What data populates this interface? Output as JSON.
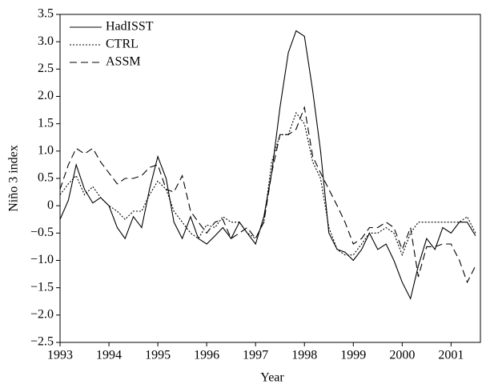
{
  "chart_data": {
    "type": "line",
    "x_label": "Year",
    "y_label": "Niño 3 index",
    "x": [
      1993,
      1993.17,
      1993.33,
      1993.5,
      1993.67,
      1993.83,
      1994,
      1994.17,
      1994.33,
      1994.5,
      1994.67,
      1994.83,
      1995,
      1995.17,
      1995.33,
      1995.5,
      1995.67,
      1995.83,
      1996,
      1996.17,
      1996.33,
      1996.5,
      1996.67,
      1996.83,
      1997,
      1997.17,
      1997.33,
      1997.5,
      1997.67,
      1997.83,
      1998,
      1998.17,
      1998.33,
      1998.5,
      1998.67,
      1998.83,
      1999,
      1999.17,
      1999.33,
      1999.5,
      1999.67,
      1999.83,
      2000,
      2000.17,
      2000.33,
      2000.5,
      2000.67,
      2000.83,
      2001,
      2001.17,
      2001.33,
      2001.5
    ],
    "series": [
      {
        "name": "HadISST",
        "color": "#000000",
        "style": "solid",
        "values": [
          -0.25,
          0.1,
          0.75,
          0.3,
          0.05,
          0.15,
          0.0,
          -0.4,
          -0.6,
          -0.2,
          -0.4,
          0.3,
          0.9,
          0.5,
          -0.3,
          -0.6,
          -0.2,
          -0.6,
          -0.7,
          -0.55,
          -0.4,
          -0.6,
          -0.3,
          -0.5,
          -0.7,
          -0.2,
          0.6,
          1.8,
          2.8,
          3.2,
          3.1,
          2.1,
          1.0,
          -0.5,
          -0.8,
          -0.85,
          -1.0,
          -0.8,
          -0.5,
          -0.8,
          -0.7,
          -1.0,
          -1.4,
          -1.7,
          -1.1,
          -0.6,
          -0.8,
          -0.4,
          -0.5,
          -0.3,
          -0.3,
          -0.55
        ]
      },
      {
        "name": "CTRL",
        "color": "#000000",
        "style": "dotted",
        "values": [
          0.2,
          0.4,
          0.55,
          0.2,
          0.35,
          0.15,
          0.0,
          -0.1,
          -0.25,
          -0.1,
          -0.1,
          0.2,
          0.45,
          0.3,
          -0.1,
          -0.3,
          -0.5,
          -0.6,
          -0.35,
          -0.4,
          -0.2,
          -0.3,
          -0.3,
          -0.5,
          -0.6,
          -0.3,
          0.8,
          1.3,
          1.3,
          1.7,
          1.5,
          0.8,
          0.5,
          -0.4,
          -0.8,
          -0.9,
          -0.9,
          -0.7,
          -0.5,
          -0.5,
          -0.4,
          -0.5,
          -0.9,
          -0.5,
          -0.3,
          -0.3,
          -0.3,
          -0.3,
          -0.3,
          -0.3,
          -0.2,
          -0.5
        ]
      },
      {
        "name": "ASSM",
        "color": "#000000",
        "style": "dashed",
        "values": [
          0.3,
          0.75,
          1.05,
          0.95,
          1.05,
          0.8,
          0.6,
          0.4,
          0.5,
          0.5,
          0.55,
          0.7,
          0.75,
          0.3,
          0.25,
          0.55,
          -0.1,
          -0.3,
          -0.5,
          -0.3,
          -0.25,
          -0.6,
          -0.5,
          -0.4,
          -0.6,
          -0.3,
          0.6,
          1.3,
          1.3,
          1.4,
          1.8,
          0.9,
          0.6,
          0.3,
          0.0,
          -0.3,
          -0.7,
          -0.6,
          -0.4,
          -0.4,
          -0.3,
          -0.4,
          -0.8,
          -0.4,
          -1.3,
          -0.75,
          -0.75,
          -0.7,
          -0.7,
          -1.0,
          -1.4,
          -1.1
        ]
      }
    ],
    "xlim": [
      1993,
      2001.6
    ],
    "xticks": [
      1993,
      1994,
      1995,
      1996,
      1997,
      1998,
      1999,
      2000,
      2001
    ],
    "ylim": [
      -2.5,
      3.5
    ],
    "yticks": [
      {
        "value": 3.5,
        "label": "3.5"
      },
      {
        "value": 3,
        "label": "3.0"
      },
      {
        "value": 2.5,
        "label": "2.5"
      },
      {
        "value": 2,
        "label": "2.0"
      },
      {
        "value": 1.5,
        "label": "1.5"
      },
      {
        "value": 1,
        "label": "1.0"
      },
      {
        "value": 0.5,
        "label": "0.5"
      },
      {
        "value": 0,
        "label": "0"
      },
      {
        "value": -0.5,
        "label": "−0.5"
      },
      {
        "value": -1,
        "label": "−1.0"
      },
      {
        "value": -1.5,
        "label": "−1.5"
      },
      {
        "value": -2,
        "label": "−2.0"
      },
      {
        "value": -2.5,
        "label": "−2.5"
      }
    ],
    "grid": false,
    "legend": "upper left"
  }
}
